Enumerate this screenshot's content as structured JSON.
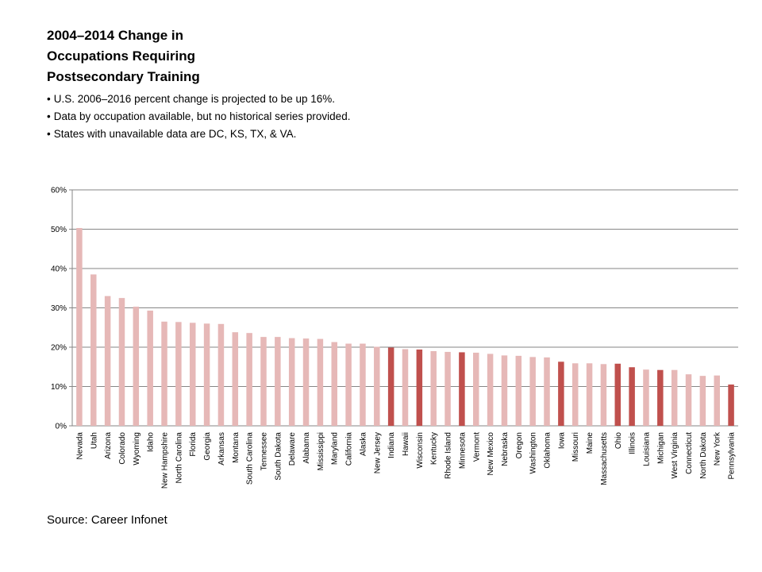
{
  "slide": {
    "title_lines": [
      "2004–2014 Change in",
      "Occupations Requiring",
      "Postsecondary Training"
    ],
    "bullets": [
      "U.S. 2006–2016 percent change is projected to be up 16%.",
      "Data by occupation available, but no historical series provided.",
      "States with unavailable data are DC, KS, TX, & VA."
    ],
    "source": "Source: Career Infonet"
  },
  "colors": {
    "bar_default": "#e6b8b7",
    "bar_highlight": "#c0504d",
    "gridline": "#868686"
  },
  "chart_data": {
    "type": "bar",
    "title": "",
    "xlabel": "",
    "ylabel": "",
    "ylim": [
      0,
      60
    ],
    "yticks": [
      "0%",
      "10%",
      "20%",
      "30%",
      "40%",
      "50%",
      "60%"
    ],
    "grid": true,
    "legend": "none",
    "categories": [
      "Nevada",
      "Utah",
      "Arizona",
      "Colorado",
      "Wyoming",
      "Idaho",
      "New Hampshire",
      "North Carolina",
      "Florida",
      "Georgia",
      "Arkansas",
      "Montana",
      "South Carolina",
      "Tennessee",
      "South Dakota",
      "Delaware",
      "Alabama",
      "Mississippi",
      "Maryland",
      "California",
      "Alaska",
      "New Jersey",
      "Indiana",
      "Hawaii",
      "Wisconsin",
      "Kentucky",
      "Rhode Island",
      "Minnesota",
      "Vermont",
      "New Mexico",
      "Nebraska",
      "Oregon",
      "Washington",
      "Oklahoma",
      "Iowa",
      "Missouri",
      "Maine",
      "Massachusetts",
      "Ohio",
      "Illinois",
      "Louisiana",
      "Michigan",
      "West Virginia",
      "Connecticut",
      "North Dakota",
      "New York",
      "Pennsylvania"
    ],
    "values": [
      50.3,
      38.5,
      33.0,
      32.5,
      30.3,
      29.3,
      26.5,
      26.4,
      26.2,
      26.0,
      25.9,
      23.8,
      23.6,
      22.6,
      22.6,
      22.3,
      22.2,
      22.1,
      21.3,
      20.9,
      20.9,
      20.1,
      19.9,
      19.5,
      19.4,
      19.0,
      18.8,
      18.7,
      18.6,
      18.3,
      17.9,
      17.8,
      17.5,
      17.4,
      16.3,
      15.9,
      15.9,
      15.7,
      15.8,
      14.9,
      14.3,
      14.2,
      14.2,
      13.1,
      12.7,
      12.8,
      10.5
    ],
    "highlighted": [
      "Indiana",
      "Wisconsin",
      "Minnesota",
      "Iowa",
      "Ohio",
      "Illinois",
      "Michigan",
      "Pennsylvania"
    ]
  }
}
